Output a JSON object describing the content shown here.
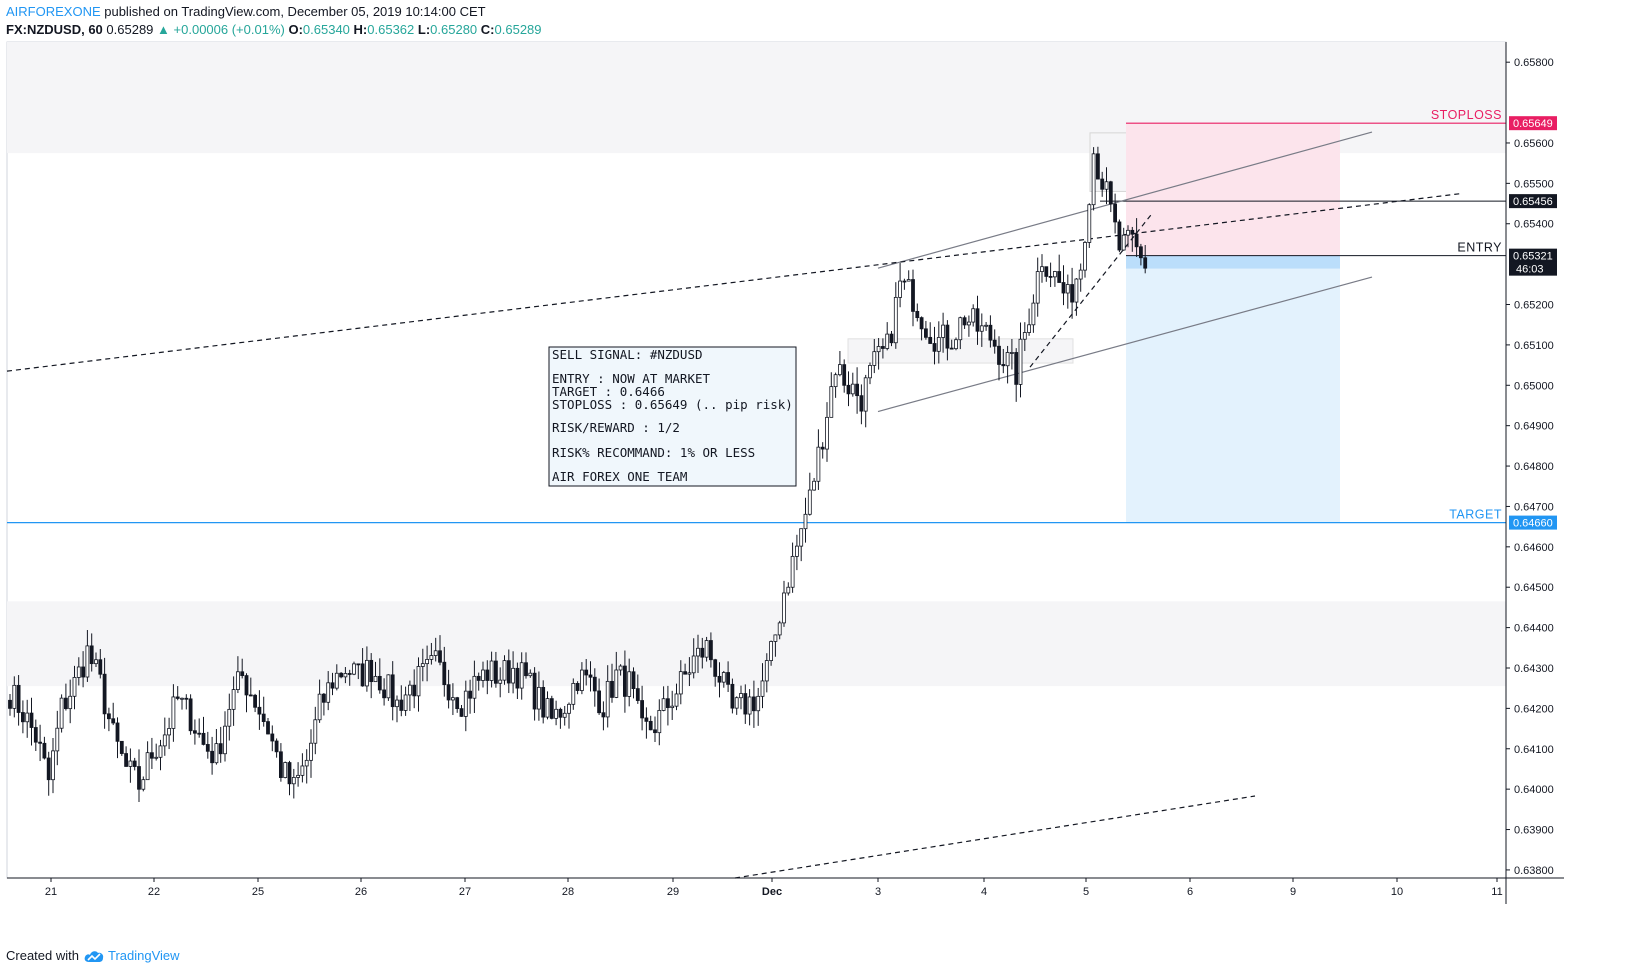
{
  "header": {
    "author": "AIRFOREXONE",
    "published": " published on TradingView.com, December 05, 2019 10:14:00 CET",
    "symbol": "FX:NZDUSD, 60",
    "last": "0.65289",
    "change": "▲ +0.00006 (+0.01%)",
    "o_label": "O:",
    "o": "0.65340",
    "h_label": "H:",
    "h": "0.65362",
    "l_label": "L:",
    "l": "0.65280",
    "c_label": "C:",
    "c": "0.65289"
  },
  "footer": {
    "created_with": "Created with",
    "brand": "TradingView"
  },
  "colors": {
    "bull": "#ffffff",
    "bear": "#131722",
    "stop": "#e91e63",
    "target": "#2196f3",
    "stop_zone": "#fce4ec",
    "target_zone": "#e3f2fd",
    "zone": "#f5f5f7"
  },
  "chart_data": {
    "type": "candlestick",
    "timeframe": "60",
    "ylim": [
      0.6378,
      0.6585
    ],
    "y_ticks": [
      "0.65800",
      "0.65600",
      "0.65500",
      "0.65400",
      "0.65200",
      "0.65100",
      "0.65000",
      "0.64900",
      "0.64800",
      "0.64700",
      "0.64600",
      "0.64500",
      "0.64400",
      "0.64300",
      "0.64200",
      "0.64100",
      "0.64000",
      "0.63900",
      "0.63800"
    ],
    "x_ticks": [
      "21",
      "22",
      "25",
      "26",
      "27",
      "28",
      "29",
      "Dec",
      "3",
      "4",
      "5",
      "6",
      "9",
      "10",
      "11"
    ],
    "price_labels": [
      {
        "text": "STOPLOSS",
        "value": "0.65649",
        "price": 0.65649,
        "kind": "stop"
      },
      {
        "text": "",
        "value": "0.65456",
        "price": 0.65456,
        "kind": "line"
      },
      {
        "text": "ENTRY",
        "value": "0.65321",
        "price": 0.65321,
        "kind": "entry"
      },
      {
        "text": "TARGET",
        "value": "0.64660",
        "price": 0.6466,
        "kind": "target"
      }
    ],
    "countdown": "46:03",
    "signal_box": [
      "SELL SIGNAL:  #NZDUSD",
      "",
      "ENTRY : NOW AT MARKET",
      "TARGET : 0.6466",
      "STOPLOSS : 0.65649 (.. pip risk)",
      "",
      "RISK/REWARD : 1/2",
      "",
      "RISK% RECOMMAND: 1% OR LESS",
      "",
      "AIR FOREX ONE  TEAM"
    ],
    "path_closes": [
      [
        0,
        0.6424
      ],
      [
        3,
        0.6419
      ],
      [
        6,
        0.6413
      ],
      [
        9,
        0.6402
      ],
      [
        12,
        0.642
      ],
      [
        15,
        0.6426
      ],
      [
        18,
        0.6434
      ],
      [
        21,
        0.6426
      ],
      [
        24,
        0.6413
      ],
      [
        27,
        0.6405
      ],
      [
        30,
        0.6401
      ],
      [
        33,
        0.6409
      ],
      [
        36,
        0.6414
      ],
      [
        39,
        0.6422
      ],
      [
        42,
        0.6418
      ],
      [
        45,
        0.6411
      ],
      [
        48,
        0.6408
      ],
      [
        51,
        0.6421
      ],
      [
        54,
        0.6428
      ],
      [
        57,
        0.6422
      ],
      [
        60,
        0.6415
      ],
      [
        63,
        0.6405
      ],
      [
        66,
        0.64
      ],
      [
        69,
        0.6407
      ],
      [
        72,
        0.642
      ],
      [
        75,
        0.6427
      ],
      [
        78,
        0.643
      ],
      [
        81,
        0.6428
      ],
      [
        84,
        0.643
      ],
      [
        87,
        0.6426
      ],
      [
        90,
        0.6421
      ],
      [
        93,
        0.6425
      ],
      [
        96,
        0.6428
      ],
      [
        99,
        0.6431
      ],
      [
        102,
        0.6426
      ],
      [
        105,
        0.6422
      ],
      [
        108,
        0.6426
      ],
      [
        111,
        0.6429
      ],
      [
        114,
        0.6428
      ],
      [
        117,
        0.643
      ],
      [
        120,
        0.6427
      ],
      [
        123,
        0.6422
      ],
      [
        126,
        0.6417
      ],
      [
        129,
        0.6421
      ],
      [
        132,
        0.6428
      ],
      [
        135,
        0.6426
      ],
      [
        138,
        0.6421
      ],
      [
        141,
        0.6428
      ],
      [
        144,
        0.6426
      ],
      [
        147,
        0.6414
      ],
      [
        150,
        0.6416
      ],
      [
        153,
        0.6421
      ],
      [
        156,
        0.6426
      ],
      [
        159,
        0.6432
      ],
      [
        162,
        0.6435
      ],
      [
        165,
        0.6428
      ],
      [
        168,
        0.6419
      ],
      [
        171,
        0.6421
      ],
      [
        174,
        0.6423
      ],
      [
        177,
        0.6433
      ],
      [
        180,
        0.6449
      ],
      [
        183,
        0.646
      ],
      [
        186,
        0.6472
      ],
      [
        189,
        0.6488
      ],
      [
        192,
        0.6505
      ],
      [
        195,
        0.65
      ],
      [
        198,
        0.6497
      ],
      [
        201,
        0.6505
      ],
      [
        204,
        0.6509
      ],
      [
        207,
        0.6525
      ],
      [
        210,
        0.6522
      ],
      [
        213,
        0.6515
      ],
      [
        216,
        0.6511
      ],
      [
        219,
        0.6512
      ],
      [
        222,
        0.6517
      ],
      [
        225,
        0.6514
      ],
      [
        228,
        0.6512
      ],
      [
        231,
        0.6507
      ],
      [
        234,
        0.6503
      ],
      [
        237,
        0.6518
      ],
      [
        240,
        0.6532
      ],
      [
        243,
        0.6527
      ],
      [
        246,
        0.6521
      ],
      [
        249,
        0.653
      ],
      [
        252,
        0.6558
      ],
      [
        255,
        0.6547
      ],
      [
        258,
        0.6534
      ],
      [
        261,
        0.6535
      ],
      [
        264,
        0.6529
      ]
    ]
  }
}
